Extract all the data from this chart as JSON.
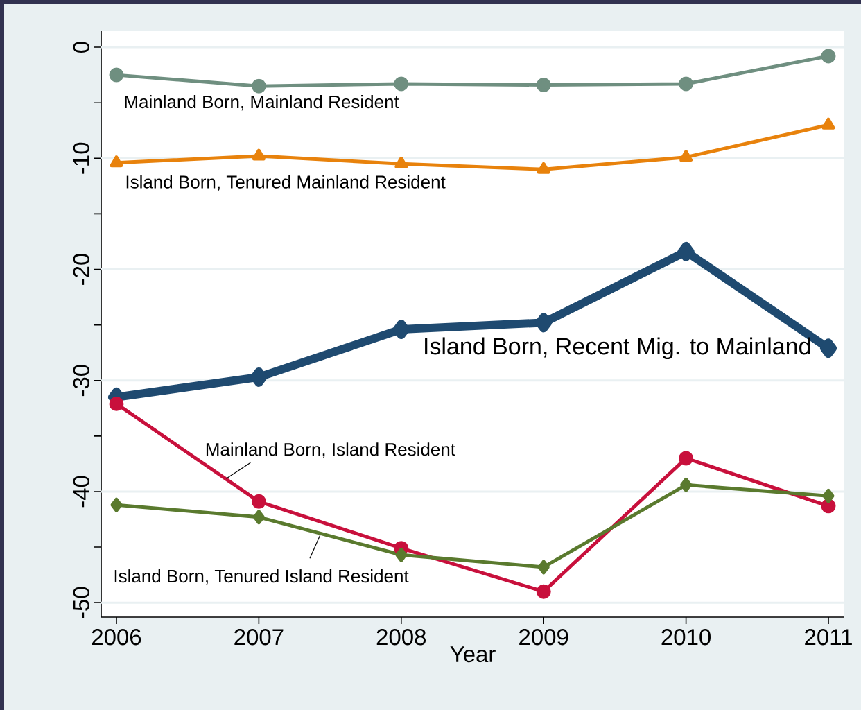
{
  "chart_data": {
    "type": "line",
    "xlabel": "Year",
    "x": [
      2006,
      2007,
      2008,
      2009,
      2010,
      2011
    ],
    "series": [
      {
        "name": "Mainland Born, Mainland Resident",
        "color": "#6f8f80",
        "marker": "circle",
        "values": [
          -2.5,
          -3.5,
          -3.3,
          -3.4,
          -3.3,
          -0.8
        ]
      },
      {
        "name": "Island Born, Tenured Mainland Resident",
        "color": "#e8820c",
        "marker": "triangle",
        "values": [
          -10.4,
          -9.8,
          -10.5,
          -11.0,
          -9.9,
          -7.0
        ]
      },
      {
        "name": "Island Born, Recent Mig. to Mainland",
        "color": "#1f4a70",
        "marker": "diamond",
        "values": [
          -31.5,
          -29.7,
          -25.4,
          -24.8,
          -18.4,
          -27.1
        ]
      },
      {
        "name": "Mainland Born, Island Resident",
        "color": "#c8103c",
        "marker": "circle",
        "values": [
          -32.1,
          -40.9,
          -45.1,
          -49.0,
          -37.0,
          -41.3
        ]
      },
      {
        "name": "Island Born, Tenured Island Resident",
        "color": "#5a7a2e",
        "marker": "diamond",
        "values": [
          -41.2,
          -42.3,
          -45.7,
          -46.8,
          -39.4,
          -40.4
        ]
      }
    ],
    "xlim": [
      2005.893,
      2011.112
    ],
    "ylim": [
      -51.3,
      1.44
    ],
    "xticks": [
      2006,
      2007,
      2008,
      2009,
      2010,
      2011
    ],
    "yticks": [
      0,
      {
        "value": -5,
        "label": null
      },
      -10,
      {
        "value": -15,
        "label": null
      },
      -20,
      {
        "value": -25,
        "label": null
      },
      -30,
      {
        "value": -35,
        "label": null
      },
      -40,
      {
        "value": -45,
        "label": null
      },
      -50
    ],
    "grid": "y"
  }
}
